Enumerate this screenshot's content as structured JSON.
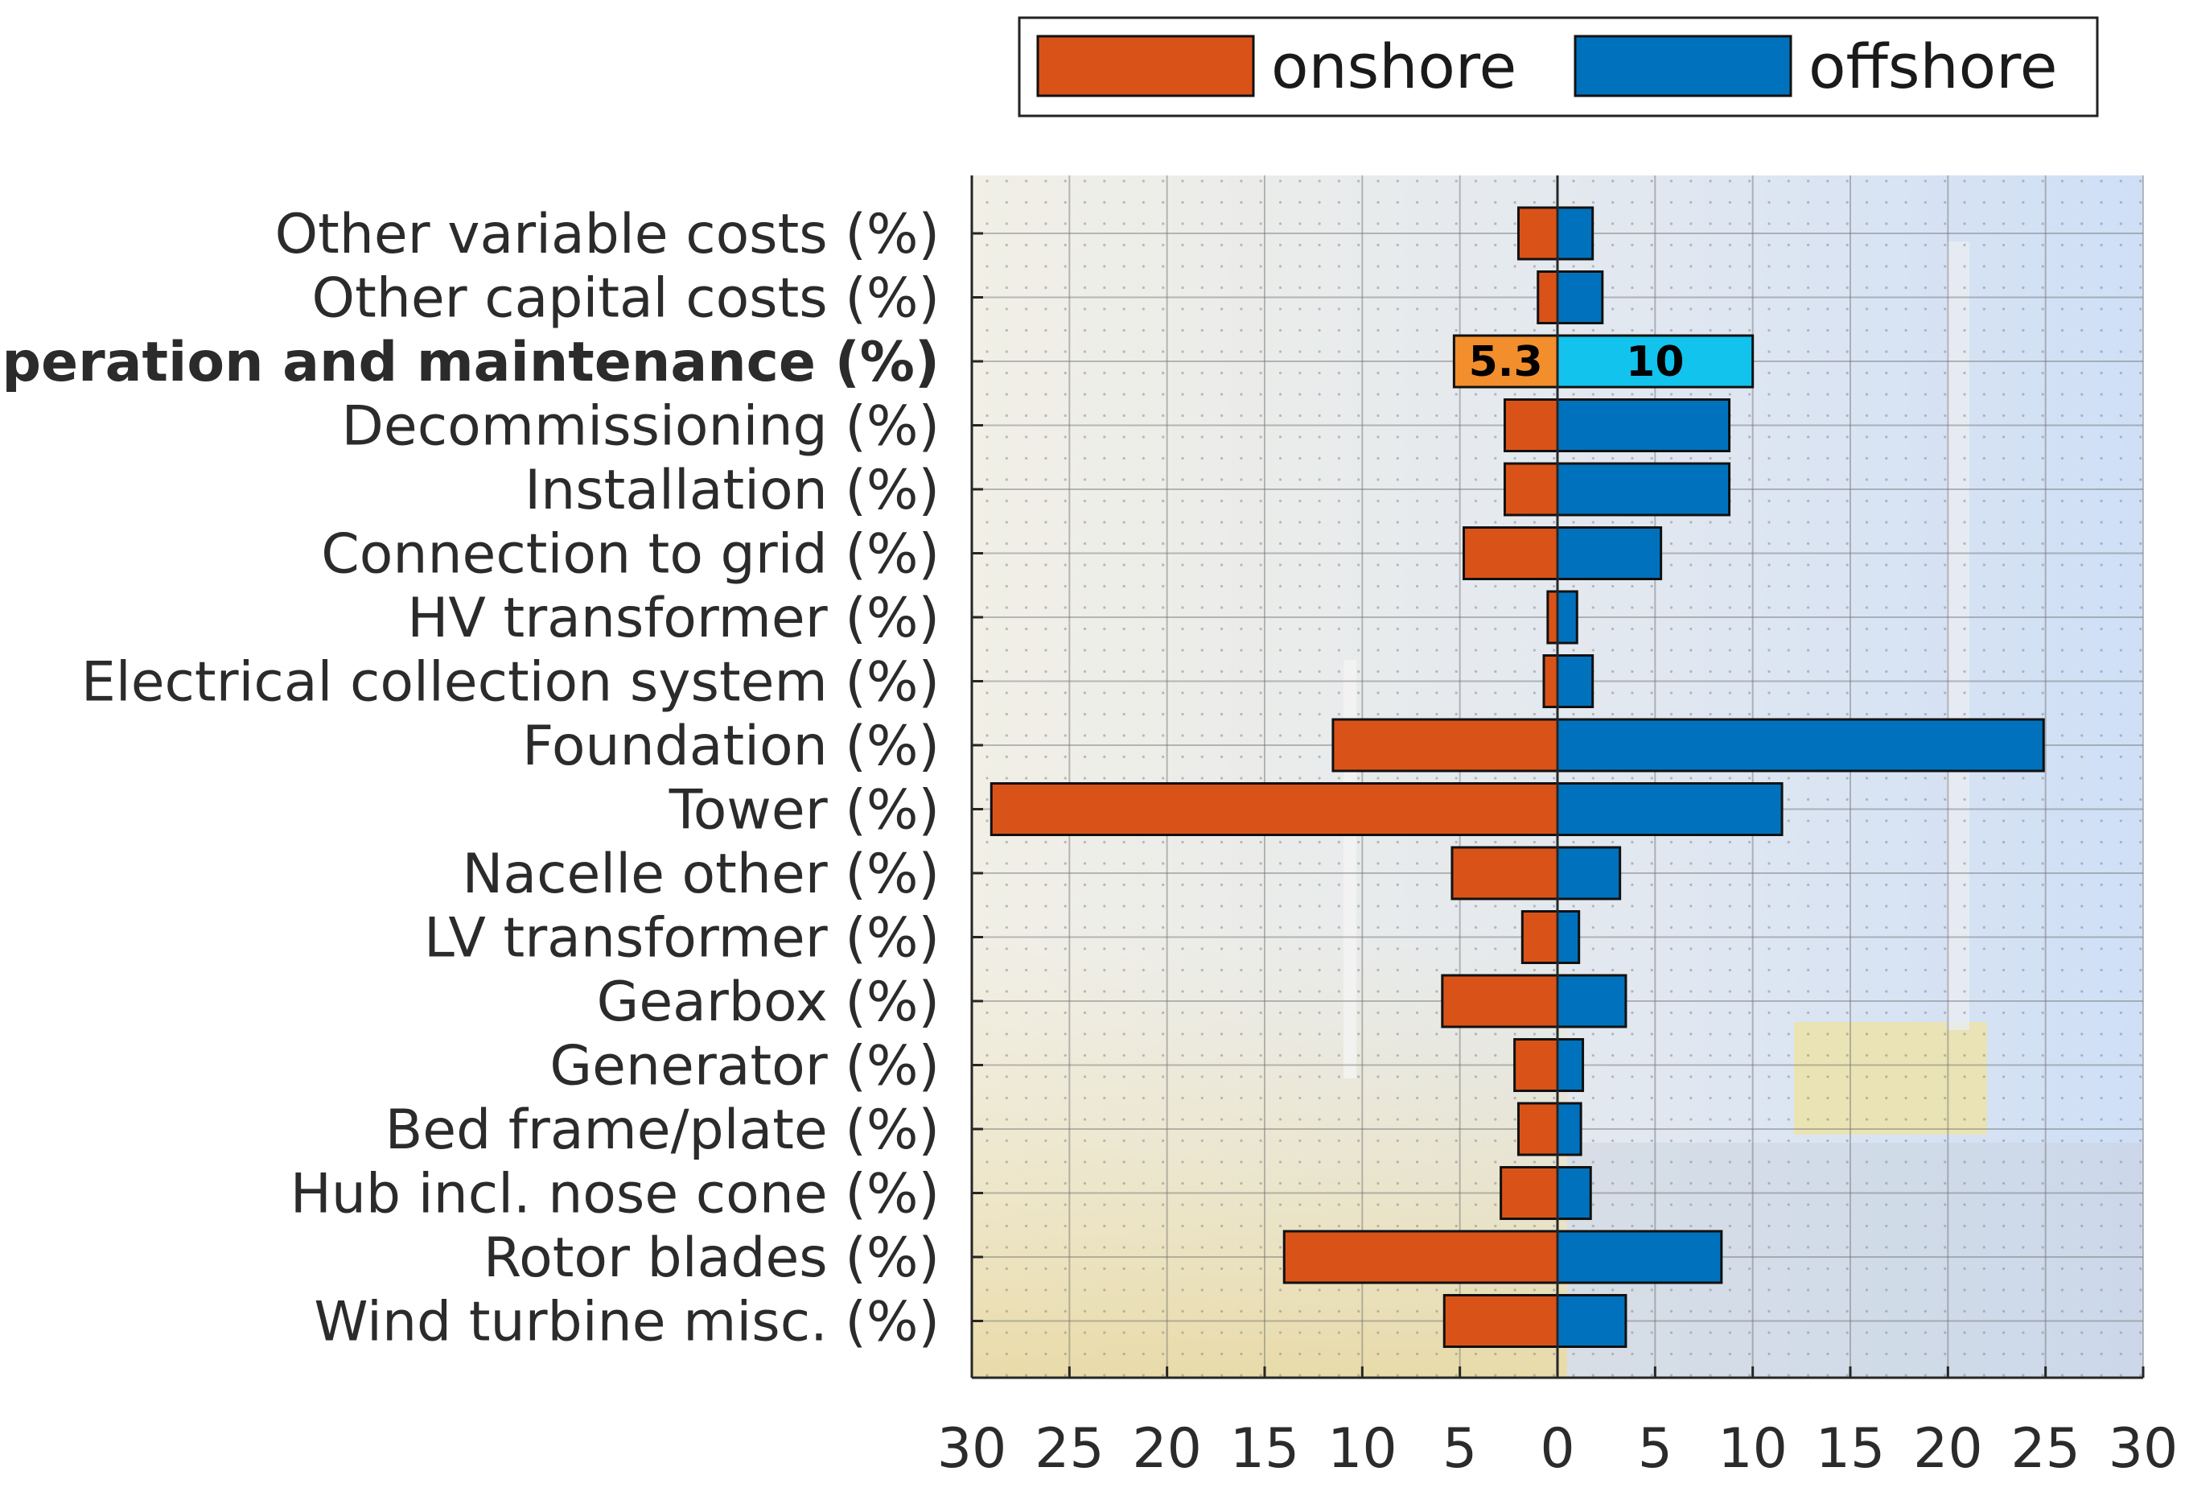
{
  "chart_data": {
    "type": "bar",
    "orientation": "horizontal-back-to-back",
    "title": "",
    "xlabel": "",
    "ylabel": "",
    "xlim_left": [
      30,
      0
    ],
    "xlim_right": [
      0,
      30
    ],
    "x_ticks_left": [
      "30",
      "25",
      "20",
      "15",
      "10",
      "5",
      "0"
    ],
    "x_ticks_right": [
      "5",
      "10",
      "15",
      "20",
      "25",
      "30"
    ],
    "grid": true,
    "legend_position": "top",
    "categories": [
      "Other variable costs (%)",
      "Other capital costs (%)",
      "Operation and maintenance (%)",
      "Decommissioning (%)",
      "Installation (%)",
      "Connection to grid (%)",
      "HV transformer (%)",
      "Electrical collection system (%)",
      "Foundation (%)",
      "Tower (%)",
      "Nacelle other (%)",
      "LV transformer (%)",
      "Gearbox (%)",
      "Generator (%)",
      "Bed frame/plate (%)",
      "Hub incl. nose cone (%)",
      "Rotor blades (%)",
      "Wind turbine misc. (%)"
    ],
    "highlighted_category": "Operation and maintenance (%)",
    "series": [
      {
        "name": "onshore",
        "color": "#D95319",
        "highlight_color": "#F28E2B",
        "values": [
          2.0,
          1.0,
          5.3,
          2.7,
          2.7,
          4.8,
          0.5,
          0.7,
          11.5,
          29.0,
          5.4,
          1.8,
          5.9,
          2.2,
          2.0,
          2.9,
          14.0,
          5.8
        ]
      },
      {
        "name": "offshore",
        "color": "#0072BD",
        "highlight_color": "#12C3EE",
        "values": [
          1.8,
          2.3,
          10.0,
          8.8,
          8.8,
          5.3,
          1.0,
          1.8,
          24.9,
          11.5,
          3.2,
          1.1,
          3.5,
          1.3,
          1.2,
          1.7,
          8.4,
          3.5
        ]
      }
    ],
    "value_labels": {
      "onshore": "5.3",
      "offshore": "10"
    }
  }
}
